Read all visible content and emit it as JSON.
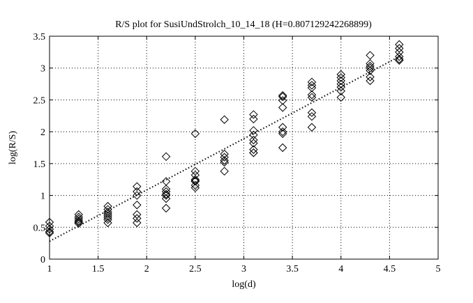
{
  "chart_data": {
    "type": "scatter",
    "title": "R/S plot for SusiUndStrolch_10_14_18 (H=0.807129242268899)",
    "xlabel": "log(d)",
    "ylabel": "log(R/S)",
    "xlim": [
      1,
      5
    ],
    "ylim": [
      0,
      3.5
    ],
    "x_ticks": [
      1,
      1.5,
      2,
      2.5,
      3,
      3.5,
      4,
      4.5,
      5
    ],
    "x_tick_labels": [
      "1",
      "1.5",
      "2",
      "2.5",
      "3",
      "3.5",
      "4",
      "4.5",
      "5"
    ],
    "y_ticks": [
      0,
      0.5,
      1,
      1.5,
      2,
      2.5,
      3,
      3.5
    ],
    "y_tick_labels": [
      "0",
      "0.5",
      "1",
      "1.5",
      "2",
      "2.5",
      "3",
      "3.5"
    ],
    "grid": true,
    "grid_style": "dotted",
    "marker": "diamond",
    "series": [
      {
        "type": "scatter",
        "x": [
          1.0,
          1.0,
          1.0,
          1.0,
          1.0,
          1.3,
          1.3,
          1.3,
          1.3,
          1.3,
          1.3,
          1.6,
          1.6,
          1.6,
          1.6,
          1.6,
          1.6,
          1.6,
          1.6,
          1.9,
          1.9,
          1.9,
          1.9,
          1.9,
          1.9,
          1.9,
          2.2,
          2.2,
          2.2,
          2.2,
          2.2,
          2.2,
          2.2,
          2.2,
          2.5,
          2.5,
          2.5,
          2.5,
          2.5,
          2.5,
          2.5,
          2.5,
          2.8,
          2.8,
          2.8,
          2.8,
          2.8,
          2.8,
          3.1,
          3.1,
          3.1,
          3.1,
          3.1,
          3.1,
          3.1,
          3.1,
          3.1,
          3.4,
          3.4,
          3.4,
          3.4,
          3.4,
          3.4,
          3.4,
          3.4,
          3.7,
          3.7,
          3.7,
          3.7,
          3.7,
          3.7,
          3.7,
          3.7,
          4.0,
          4.0,
          4.0,
          4.0,
          4.0,
          4.0,
          4.0,
          4.3,
          4.3,
          4.3,
          4.3,
          4.3,
          4.3,
          4.3,
          4.6,
          4.6,
          4.6,
          4.6,
          4.6,
          4.6
        ],
        "y": [
          0.58,
          0.52,
          0.47,
          0.43,
          0.41,
          0.7,
          0.66,
          0.63,
          0.6,
          0.58,
          0.56,
          0.83,
          0.78,
          0.74,
          0.71,
          0.68,
          0.65,
          0.62,
          0.57,
          1.14,
          1.06,
          1.0,
          0.85,
          0.7,
          0.64,
          0.57,
          1.61,
          1.22,
          1.1,
          1.06,
          1.02,
          1.0,
          0.95,
          0.8,
          1.97,
          1.38,
          1.32,
          1.25,
          1.23,
          1.22,
          1.16,
          1.12,
          2.19,
          1.65,
          1.6,
          1.55,
          1.52,
          1.38,
          2.27,
          2.2,
          2.02,
          1.95,
          1.87,
          1.82,
          1.72,
          1.67,
          1.67,
          2.57,
          2.55,
          2.49,
          2.38,
          2.07,
          2.0,
          1.97,
          1.75,
          2.78,
          2.73,
          2.69,
          2.58,
          2.54,
          2.3,
          2.24,
          2.07,
          2.9,
          2.85,
          2.8,
          2.75,
          2.7,
          2.64,
          2.54,
          3.2,
          3.07,
          3.03,
          3.0,
          2.96,
          2.86,
          2.8,
          3.37,
          3.31,
          3.25,
          3.18,
          3.14,
          3.12
        ]
      },
      {
        "type": "line",
        "style": "dotted",
        "x": [
          1.0,
          4.6
        ],
        "y": [
          0.28,
          3.18
        ]
      }
    ]
  }
}
